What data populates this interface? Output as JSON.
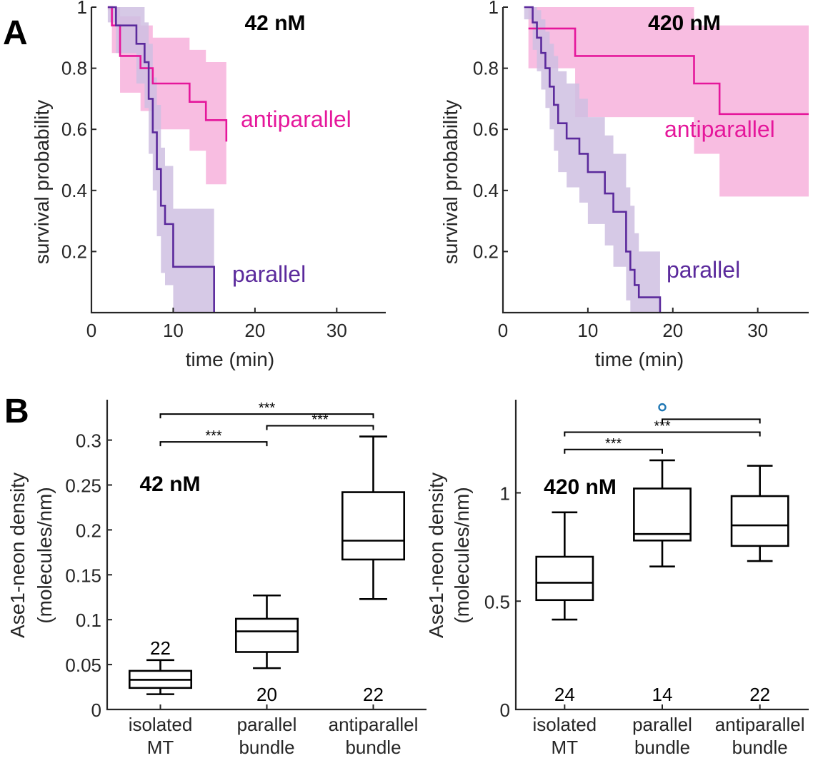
{
  "panels": {
    "a": "A",
    "b": "B"
  },
  "colors": {
    "antiparallel": "#e5179b",
    "antiparallel_band": "#f7b2dc",
    "parallel": "#5b2a9c",
    "parallel_band": "#cfc0e2",
    "outlier": "#1f77b4"
  },
  "chart_data": [
    {
      "type": "line",
      "title": "42 nM",
      "xlabel": "time (min)",
      "ylabel": "survival probability",
      "xlim": [
        0,
        36
      ],
      "ylim": [
        0,
        1
      ],
      "xticks": [
        0,
        10,
        20,
        30
      ],
      "yticks": [
        0.2,
        0.4,
        0.6,
        0.8,
        1
      ],
      "ytick_labels": [
        "0.2",
        "0.4",
        "0.6",
        "0.8",
        "1"
      ],
      "series": [
        {
          "name": "antiparallel",
          "color": "#e5179b",
          "x": [
            2,
            2.5,
            3.5,
            6,
            7.5,
            12,
            14,
            16.5
          ],
          "y": [
            1,
            0.94,
            0.84,
            0.8,
            0.75,
            0.69,
            0.63,
            0.56
          ],
          "lower": [
            0.99,
            0.85,
            0.72,
            0.66,
            0.6,
            0.53,
            0.42,
            0.32
          ],
          "upper": [
            1,
            1,
            0.97,
            0.94,
            0.9,
            0.86,
            0.82,
            0.78
          ]
        },
        {
          "name": "parallel",
          "color": "#5b2a9c",
          "x": [
            2,
            3,
            5.5,
            6.5,
            7,
            7.5,
            8,
            8.5,
            9,
            10,
            15
          ],
          "y": [
            1,
            0.94,
            0.88,
            0.82,
            0.7,
            0.59,
            0.47,
            0.35,
            0.29,
            0.15,
            0
          ],
          "lower": [
            0.95,
            0.85,
            0.75,
            0.67,
            0.52,
            0.4,
            0.25,
            0.13,
            0.09,
            0,
            0
          ],
          "upper": [
            1,
            1,
            1,
            0.95,
            0.88,
            0.77,
            0.68,
            0.54,
            0.48,
            0.34,
            0.34
          ]
        }
      ]
    },
    {
      "type": "line",
      "title": "420 nM",
      "xlabel": "time (min)",
      "ylabel": "survival probability",
      "xlim": [
        0,
        36
      ],
      "ylim": [
        0,
        1
      ],
      "xticks": [
        0,
        10,
        20,
        30
      ],
      "yticks": [
        0.2,
        0.4,
        0.6,
        0.8,
        1
      ],
      "ytick_labels": [
        "0.2",
        "0.4",
        "0.6",
        "0.8",
        "1"
      ],
      "series": [
        {
          "name": "antiparallel",
          "color": "#e5179b",
          "x": [
            3,
            8.5,
            22.5,
            25.5,
            36
          ],
          "y": [
            0.93,
            0.84,
            0.75,
            0.65,
            0.65
          ],
          "lower": [
            0.8,
            0.64,
            0.52,
            0.38,
            0.38
          ],
          "upper": [
            1,
            1,
            0.94,
            0.94,
            0.94
          ]
        },
        {
          "name": "parallel",
          "color": "#5b2a9c",
          "x": [
            2.5,
            3.5,
            4,
            4.5,
            5,
            5.5,
            6,
            6.5,
            7.5,
            9,
            10,
            12,
            13,
            14.5,
            15,
            15.5,
            16,
            18.5
          ],
          "y": [
            1,
            0.95,
            0.9,
            0.85,
            0.8,
            0.74,
            0.68,
            0.62,
            0.57,
            0.52,
            0.46,
            0.39,
            0.33,
            0.2,
            0.14,
            0.09,
            0.05,
            0
          ],
          "lower": [
            0.96,
            0.86,
            0.79,
            0.73,
            0.67,
            0.6,
            0.53,
            0.46,
            0.41,
            0.36,
            0.29,
            0.22,
            0.15,
            0.04,
            0,
            0,
            0,
            0
          ],
          "upper": [
            1,
            1,
            0.99,
            0.96,
            0.92,
            0.88,
            0.84,
            0.79,
            0.75,
            0.7,
            0.64,
            0.58,
            0.52,
            0.41,
            0.35,
            0.26,
            0.2,
            0.2
          ]
        }
      ]
    },
    {
      "type": "box",
      "title": "42 nM",
      "ylabel": "Ase1-neon density (molecules/nm)",
      "ylabel_lines": [
        "Ase1-neon density",
        "(molecules/nm)"
      ],
      "ylim": [
        0,
        0.345
      ],
      "yticks": [
        0,
        0.05,
        0.1,
        0.15,
        0.2,
        0.25,
        0.3
      ],
      "ytick_labels": [
        "0",
        "0.05",
        "0.1",
        "0.15",
        "0.2",
        "0.25",
        "0.3"
      ],
      "categories": [
        [
          "isolated",
          "MT"
        ],
        [
          "parallel",
          "bundle"
        ],
        [
          "antiparallel",
          "bundle"
        ]
      ],
      "boxes": [
        {
          "whisker_low": 0.017,
          "q1": 0.024,
          "median": 0.033,
          "q3": 0.043,
          "whisker_high": 0.055,
          "n": "22"
        },
        {
          "whisker_low": 0.046,
          "q1": 0.064,
          "median": 0.087,
          "q3": 0.101,
          "whisker_high": 0.127,
          "n": "20"
        },
        {
          "whisker_low": 0.123,
          "q1": 0.167,
          "median": 0.188,
          "q3": 0.242,
          "whisker_high": 0.304,
          "n": "22"
        }
      ],
      "significance": [
        {
          "from": 0,
          "to": 1,
          "label": "***",
          "y": 0.298
        },
        {
          "from": 1,
          "to": 2,
          "label": "***",
          "y": 0.316
        },
        {
          "from": 0,
          "to": 2,
          "label": "***",
          "y": 0.329
        }
      ]
    },
    {
      "type": "box",
      "title": "420 nM",
      "ylabel": "Ase1-neon density (molecules/nm)",
      "ylabel_lines": [
        "Ase1-neon density",
        "(molecules/nm)"
      ],
      "ylim": [
        0,
        1.43
      ],
      "yticks": [
        0,
        0.5,
        1
      ],
      "ytick_labels": [
        "0",
        "0.5",
        "1"
      ],
      "categories": [
        [
          "isolated",
          "MT"
        ],
        [
          "parallel",
          "bundle"
        ],
        [
          "antiparallel",
          "bundle"
        ]
      ],
      "boxes": [
        {
          "whisker_low": 0.415,
          "q1": 0.505,
          "median": 0.585,
          "q3": 0.705,
          "whisker_high": 0.91,
          "n": "24"
        },
        {
          "whisker_low": 0.66,
          "q1": 0.78,
          "median": 0.81,
          "q3": 1.02,
          "whisker_high": 1.15,
          "n": "14"
        },
        {
          "whisker_low": 0.685,
          "q1": 0.755,
          "median": 0.85,
          "q3": 0.985,
          "whisker_high": 1.125,
          "n": "22"
        }
      ],
      "outliers": [
        {
          "category": 1,
          "value": 1.395
        }
      ],
      "significance": [
        {
          "from": 0,
          "to": 1,
          "label": "***",
          "y": 1.2
        },
        {
          "from": 0,
          "to": 2,
          "label": "***",
          "y": 1.28
        },
        {
          "from": 1,
          "to": 2,
          "label": "",
          "y": 1.34
        }
      ]
    }
  ]
}
